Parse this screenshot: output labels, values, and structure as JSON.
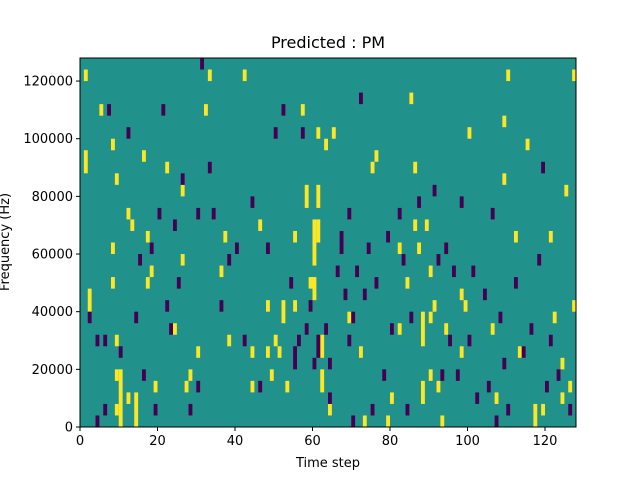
{
  "chart_data": {
    "type": "heatmap",
    "title": "Predicted : PM",
    "xlabel": "Time step",
    "ylabel": "Frequency (Hz)",
    "xlim": [
      0,
      128
    ],
    "ylim": [
      0,
      128000
    ],
    "xticks": [
      0,
      20,
      40,
      60,
      80,
      100,
      120
    ],
    "yticks": [
      0,
      20000,
      40000,
      60000,
      80000,
      100000,
      120000
    ],
    "xtick_labels": [
      "0",
      "20",
      "40",
      "60",
      "80",
      "100",
      "120"
    ],
    "ytick_labels": [
      "0",
      "20000",
      "40000",
      "60000",
      "80000",
      "100000",
      "120000"
    ],
    "grid": false,
    "legend": "none",
    "cell_height_hz": 4000,
    "colors": {
      "background": "#21918c",
      "high": "#fde725",
      "low": "#440154"
    },
    "high_segments": [
      [
        1,
        120000,
        1
      ],
      [
        1,
        88000,
        2
      ],
      [
        2,
        40000,
        2
      ],
      [
        5,
        108000,
        1
      ],
      [
        8,
        96000,
        1
      ],
      [
        9,
        84000,
        1
      ],
      [
        8,
        60000,
        1
      ],
      [
        8,
        48000,
        1
      ],
      [
        9,
        28000,
        1
      ],
      [
        9,
        16000,
        1
      ],
      [
        9,
        4000,
        1
      ],
      [
        10,
        0,
        5
      ],
      [
        12,
        8000,
        1
      ],
      [
        12,
        72000,
        1
      ],
      [
        13,
        68000,
        1
      ],
      [
        14,
        0,
        3
      ],
      [
        16,
        92000,
        1
      ],
      [
        17,
        64000,
        1
      ],
      [
        17,
        48000,
        1
      ],
      [
        18,
        52000,
        1
      ],
      [
        19,
        12000,
        1
      ],
      [
        22,
        88000,
        1
      ],
      [
        24,
        32000,
        1
      ],
      [
        26,
        80000,
        1
      ],
      [
        26,
        56000,
        1
      ],
      [
        27,
        12000,
        1
      ],
      [
        28,
        16000,
        1
      ],
      [
        30,
        24000,
        1
      ],
      [
        32,
        108000,
        1
      ],
      [
        33,
        120000,
        1
      ],
      [
        36,
        52000,
        1
      ],
      [
        37,
        64000,
        1
      ],
      [
        38,
        28000,
        1
      ],
      [
        42,
        120000,
        1
      ],
      [
        44,
        24000,
        1
      ],
      [
        44,
        12000,
        1
      ],
      [
        46,
        68000,
        1
      ],
      [
        48,
        40000,
        1
      ],
      [
        48,
        24000,
        1
      ],
      [
        49,
        16000,
        1
      ],
      [
        50,
        28000,
        1
      ],
      [
        51,
        24000,
        1
      ],
      [
        52,
        36000,
        2
      ],
      [
        53,
        12000,
        1
      ],
      [
        55,
        64000,
        1
      ],
      [
        55,
        40000,
        1
      ],
      [
        57,
        108000,
        1
      ],
      [
        58,
        76000,
        2
      ],
      [
        59,
        48000,
        1
      ],
      [
        60,
        56000,
        4
      ],
      [
        60,
        44000,
        2
      ],
      [
        61,
        68000,
        1
      ],
      [
        61,
        76000,
        2
      ],
      [
        61,
        64000,
        1
      ],
      [
        61,
        100000,
        1
      ],
      [
        62,
        24000,
        2
      ],
      [
        62,
        12000,
        2
      ],
      [
        63,
        96000,
        1
      ],
      [
        64,
        4000,
        1
      ],
      [
        65,
        100000,
        1
      ],
      [
        69,
        36000,
        1
      ],
      [
        72,
        24000,
        1
      ],
      [
        73,
        0,
        1
      ],
      [
        75,
        88000,
        1
      ],
      [
        76,
        92000,
        1
      ],
      [
        79,
        0,
        1
      ],
      [
        80,
        8000,
        1
      ],
      [
        82,
        32000,
        1
      ],
      [
        82,
        60000,
        1
      ],
      [
        84,
        48000,
        1
      ],
      [
        85,
        112000,
        1
      ],
      [
        86,
        68000,
        1
      ],
      [
        86,
        88000,
        1
      ],
      [
        87,
        60000,
        1
      ],
      [
        88,
        28000,
        3
      ],
      [
        88,
        8000,
        2
      ],
      [
        89,
        68000,
        1
      ],
      [
        90,
        52000,
        1
      ],
      [
        90,
        36000,
        1
      ],
      [
        90,
        16000,
        1
      ],
      [
        91,
        40000,
        1
      ],
      [
        92,
        12000,
        1
      ],
      [
        93,
        0,
        1
      ],
      [
        94,
        32000,
        1
      ],
      [
        98,
        24000,
        1
      ],
      [
        98,
        44000,
        1
      ],
      [
        99,
        40000,
        1
      ],
      [
        100,
        100000,
        1
      ],
      [
        106,
        32000,
        1
      ],
      [
        107,
        8000,
        1
      ],
      [
        109,
        84000,
        1
      ],
      [
        109,
        104000,
        1
      ],
      [
        110,
        120000,
        1
      ],
      [
        112,
        64000,
        1
      ],
      [
        113,
        24000,
        1
      ],
      [
        115,
        96000,
        1
      ],
      [
        117,
        0,
        2
      ],
      [
        119,
        4000,
        1
      ],
      [
        121,
        64000,
        1
      ],
      [
        122,
        36000,
        1
      ],
      [
        124,
        8000,
        1
      ],
      [
        124,
        20000,
        1
      ],
      [
        126,
        12000,
        1
      ],
      [
        127,
        40000,
        1
      ],
      [
        127,
        120000,
        1
      ],
      [
        125,
        80000,
        1
      ]
    ],
    "low_segments": [
      [
        2,
        36000,
        1
      ],
      [
        4,
        0,
        1
      ],
      [
        4,
        28000,
        1
      ],
      [
        6,
        4000,
        1
      ],
      [
        6,
        28000,
        1
      ],
      [
        7,
        108000,
        1
      ],
      [
        10,
        24000,
        1
      ],
      [
        12,
        100000,
        1
      ],
      [
        14,
        36000,
        1
      ],
      [
        15,
        56000,
        1
      ],
      [
        16,
        16000,
        1
      ],
      [
        18,
        60000,
        1
      ],
      [
        19,
        4000,
        1
      ],
      [
        20,
        72000,
        1
      ],
      [
        21,
        108000,
        1
      ],
      [
        22,
        40000,
        1
      ],
      [
        23,
        32000,
        1
      ],
      [
        24,
        68000,
        1
      ],
      [
        25,
        48000,
        1
      ],
      [
        26,
        84000,
        1
      ],
      [
        28,
        4000,
        1
      ],
      [
        30,
        72000,
        1
      ],
      [
        30,
        12000,
        1
      ],
      [
        31,
        124000,
        1
      ],
      [
        33,
        88000,
        1
      ],
      [
        34,
        72000,
        1
      ],
      [
        36,
        40000,
        1
      ],
      [
        38,
        56000,
        1
      ],
      [
        40,
        60000,
        1
      ],
      [
        42,
        28000,
        1
      ],
      [
        44,
        76000,
        1
      ],
      [
        46,
        12000,
        1
      ],
      [
        48,
        60000,
        1
      ],
      [
        50,
        100000,
        1
      ],
      [
        52,
        108000,
        1
      ],
      [
        54,
        48000,
        1
      ],
      [
        55,
        20000,
        2
      ],
      [
        56,
        28000,
        1
      ],
      [
        57,
        100000,
        1
      ],
      [
        58,
        32000,
        1
      ],
      [
        59,
        40000,
        1
      ],
      [
        60,
        20000,
        1
      ],
      [
        61,
        24000,
        2
      ],
      [
        63,
        32000,
        1
      ],
      [
        64,
        8000,
        1
      ],
      [
        64,
        20000,
        1
      ],
      [
        66,
        52000,
        1
      ],
      [
        67,
        60000,
        1
      ],
      [
        67,
        64000,
        1
      ],
      [
        68,
        44000,
        1
      ],
      [
        69,
        28000,
        1
      ],
      [
        69,
        72000,
        1
      ],
      [
        70,
        0,
        1
      ],
      [
        70,
        36000,
        1
      ],
      [
        71,
        52000,
        1
      ],
      [
        72,
        112000,
        1
      ],
      [
        73,
        44000,
        1
      ],
      [
        74,
        60000,
        1
      ],
      [
        75,
        4000,
        1
      ],
      [
        76,
        48000,
        1
      ],
      [
        78,
        16000,
        1
      ],
      [
        79,
        64000,
        1
      ],
      [
        80,
        32000,
        1
      ],
      [
        82,
        72000,
        1
      ],
      [
        83,
        56000,
        1
      ],
      [
        84,
        4000,
        1
      ],
      [
        85,
        36000,
        1
      ],
      [
        87,
        76000,
        1
      ],
      [
        91,
        80000,
        1
      ],
      [
        92,
        56000,
        1
      ],
      [
        93,
        16000,
        1
      ],
      [
        94,
        60000,
        1
      ],
      [
        95,
        28000,
        1
      ],
      [
        96,
        52000,
        1
      ],
      [
        97,
        16000,
        1
      ],
      [
        98,
        76000,
        1
      ],
      [
        100,
        28000,
        1
      ],
      [
        101,
        52000,
        1
      ],
      [
        102,
        8000,
        1
      ],
      [
        104,
        44000,
        1
      ],
      [
        105,
        12000,
        1
      ],
      [
        106,
        72000,
        1
      ],
      [
        107,
        0,
        1
      ],
      [
        108,
        36000,
        1
      ],
      [
        109,
        20000,
        1
      ],
      [
        110,
        4000,
        1
      ],
      [
        112,
        48000,
        1
      ],
      [
        114,
        24000,
        1
      ],
      [
        116,
        32000,
        1
      ],
      [
        118,
        56000,
        1
      ],
      [
        119,
        88000,
        1
      ],
      [
        120,
        12000,
        1
      ],
      [
        121,
        28000,
        1
      ],
      [
        123,
        16000,
        1
      ],
      [
        126,
        4000,
        1
      ]
    ]
  }
}
